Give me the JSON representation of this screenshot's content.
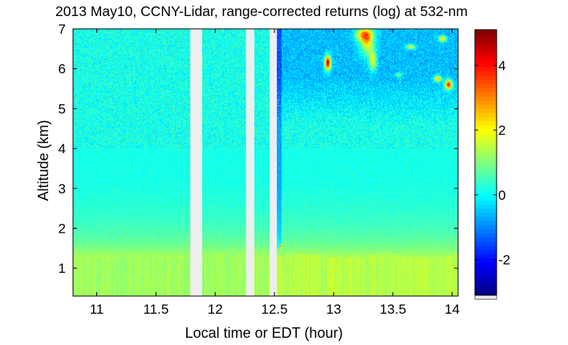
{
  "chart_data": {
    "type": "heatmap",
    "title": "2013 May10, CCNY-Lidar, range-corrected returns (log) at 532-nm",
    "xlabel": "Local time or EDT (hour)",
    "ylabel": "Altitude (km)",
    "xlim": [
      10.8,
      14.05
    ],
    "ylim": [
      0.3,
      7.0
    ],
    "x_ticks": [
      11,
      11.5,
      12,
      12.5,
      13,
      13.5,
      14
    ],
    "x_tick_labels": [
      "11",
      "11.5",
      "12",
      "12.5",
      "13",
      "13.5",
      "14"
    ],
    "y_ticks": [
      1,
      2,
      3,
      4,
      5,
      6,
      7
    ],
    "y_tick_labels": [
      "1",
      "2",
      "3",
      "4",
      "5",
      "6",
      "7"
    ],
    "colorbar": {
      "colormap": "jet",
      "clim": [
        -3.1,
        5.1
      ],
      "ticks": [
        -2,
        0,
        2,
        4
      ],
      "tick_labels": [
        "-2",
        "0",
        "2",
        "4"
      ]
    },
    "data_gaps": [
      {
        "x_start": 11.79,
        "x_end": 11.89
      },
      {
        "x_start": 12.26,
        "x_end": 12.33
      },
      {
        "x_start": 12.46,
        "x_end": 12.52
      }
    ],
    "layers": [
      {
        "kind": "boundary layer",
        "x_range": [
          10.8,
          14.05
        ],
        "z_range": [
          0.3,
          1.35
        ],
        "value": 1.3
      },
      {
        "kind": "free troposphere",
        "x_range": [
          10.8,
          14.05
        ],
        "z_range": [
          1.35,
          7.0
        ],
        "value": 0.1
      },
      {
        "kind": "noisy region",
        "x_range": [
          12.52,
          14.05
        ],
        "z_range": [
          4.5,
          7.0
        ],
        "value": -0.7
      },
      {
        "kind": "cloud",
        "x": 12.95,
        "z": 6.15,
        "value": 4.5
      },
      {
        "kind": "cloud",
        "x": 13.3,
        "z": 6.6,
        "value": 2.5
      },
      {
        "kind": "cloud",
        "x": 13.95,
        "z": 5.6,
        "value": 3.8
      },
      {
        "kind": "cloud",
        "x": 13.92,
        "z": 6.75,
        "value": 2.8
      },
      {
        "kind": "cloud",
        "x": 12.55,
        "z": 1.55,
        "value": 4.0
      }
    ]
  }
}
